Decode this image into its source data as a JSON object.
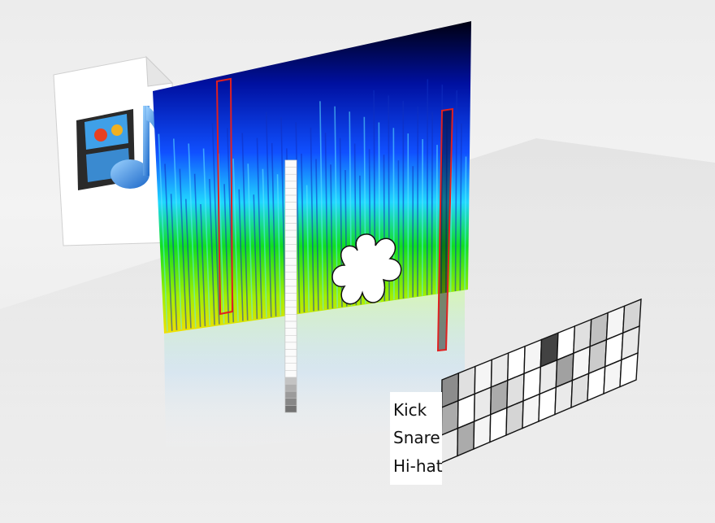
{
  "labels": {
    "kick": "Kick",
    "snare": "Snare",
    "hihat": "Hi-hat"
  },
  "icons": {
    "file": "media-file-icon",
    "film": "film-strip-icon",
    "note": "music-note-icon",
    "blob": "flower-blob-icon"
  },
  "colors": {
    "spectrogram_low": "#f0e000",
    "spectrogram_mid": "#00c000",
    "spectrogram_high": "#0040ff",
    "spectrogram_top": "#000000",
    "highlight_outline": "#e02020"
  },
  "grid": {
    "rows": 3,
    "cols": 12,
    "cells": [
      [
        0.55,
        0.15,
        0.05,
        0.1,
        0.0,
        0.05,
        0.9,
        0.0,
        0.15,
        0.3,
        0.05,
        0.2
      ],
      [
        0.4,
        0.0,
        0.1,
        0.4,
        0.15,
        0.0,
        0.1,
        0.45,
        0.05,
        0.25,
        0.0,
        0.1
      ],
      [
        0.1,
        0.4,
        0.05,
        0.0,
        0.2,
        0.05,
        0.0,
        0.1,
        0.15,
        0.0,
        0.05,
        0.0
      ]
    ]
  }
}
